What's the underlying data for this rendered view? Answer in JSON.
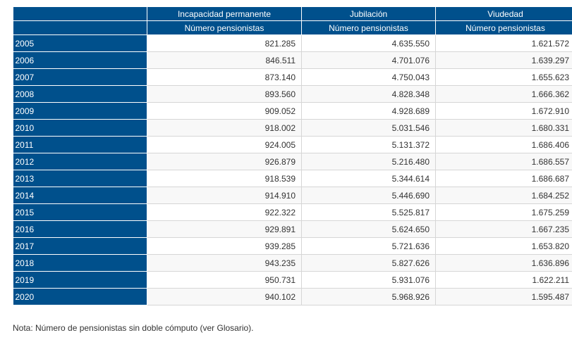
{
  "table": {
    "groups": [
      "Incapacidad permanente",
      "Jubilación",
      "Viudedad"
    ],
    "subheader": "Número pensionistas",
    "rows": [
      [
        "2005",
        "821.285",
        "4.635.550",
        "1.621.572"
      ],
      [
        "2006",
        "846.511",
        "4.701.076",
        "1.639.297"
      ],
      [
        "2007",
        "873.140",
        "4.750.043",
        "1.655.623"
      ],
      [
        "2008",
        "893.560",
        "4.828.348",
        "1.666.362"
      ],
      [
        "2009",
        "909.052",
        "4.928.689",
        "1.672.910"
      ],
      [
        "2010",
        "918.002",
        "5.031.546",
        "1.680.331"
      ],
      [
        "2011",
        "924.005",
        "5.131.372",
        "1.686.406"
      ],
      [
        "2012",
        "926.879",
        "5.216.480",
        "1.686.557"
      ],
      [
        "2013",
        "918.539",
        "5.344.614",
        "1.686.687"
      ],
      [
        "2014",
        "914.910",
        "5.446.690",
        "1.684.252"
      ],
      [
        "2015",
        "922.322",
        "5.525.817",
        "1.675.259"
      ],
      [
        "2016",
        "929.891",
        "5.624.650",
        "1.667.235"
      ],
      [
        "2017",
        "939.285",
        "5.721.636",
        "1.653.820"
      ],
      [
        "2018",
        "943.235",
        "5.827.626",
        "1.636.896"
      ],
      [
        "2019",
        "950.731",
        "5.931.076",
        "1.622.211"
      ],
      [
        "2020",
        "940.102",
        "5.968.926",
        "1.595.487"
      ]
    ]
  },
  "note": "Nota: Número de pensionistas sin doble cómputo (ver Glosario).",
  "colors": {
    "header_bg": "#00508c"
  }
}
